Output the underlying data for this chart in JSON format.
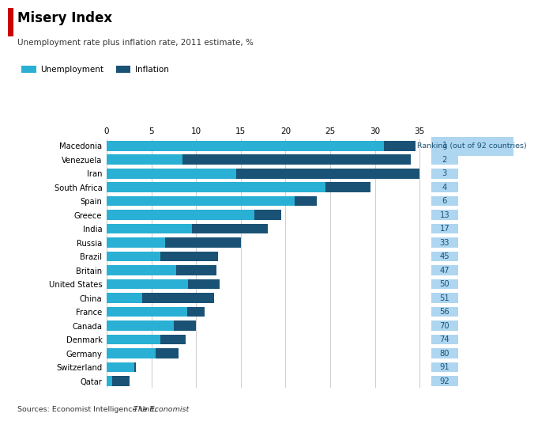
{
  "title": "Misery Index",
  "subtitle": "Unemployment rate plus inflation rate, 2011 estimate, %",
  "legend_label1": "Unemployment",
  "legend_label2": "Inflation",
  "ranking_label": "Ranking (out of 92 countries)",
  "source": "Sources: Economist Intelligence Unit; ",
  "source_italic": "The Economist",
  "countries": [
    "Macedonia",
    "Venezuela",
    "Iran",
    "South Africa",
    "Spain",
    "Greece",
    "India",
    "Russia",
    "Brazil",
    "Britain",
    "United States",
    "China",
    "France",
    "Canada",
    "Denmark",
    "Germany",
    "Switzerland",
    "Qatar"
  ],
  "rankings": [
    1,
    2,
    3,
    4,
    6,
    13,
    17,
    33,
    45,
    47,
    50,
    51,
    56,
    70,
    74,
    80,
    91,
    92
  ],
  "unemployment": [
    31.0,
    8.5,
    14.5,
    24.5,
    21.0,
    16.5,
    9.5,
    6.5,
    6.0,
    7.8,
    9.1,
    4.0,
    9.0,
    7.5,
    6.0,
    5.5,
    3.1,
    0.6
  ],
  "inflation": [
    3.5,
    25.5,
    20.5,
    5.0,
    2.5,
    3.0,
    8.5,
    8.5,
    6.5,
    4.5,
    3.5,
    8.0,
    2.0,
    2.5,
    2.8,
    2.5,
    0.2,
    2.0
  ],
  "color_unemployment": "#29b0d4",
  "color_inflation": "#1a5276",
  "color_ranking_bg": "#aed6f1",
  "color_ranking_text": "#1a5276",
  "xlim": [
    0,
    36
  ],
  "xticks": [
    0,
    5,
    10,
    15,
    20,
    25,
    30,
    35
  ],
  "grid_color": "#d0d0d0",
  "title_red_color": "#cc0000"
}
